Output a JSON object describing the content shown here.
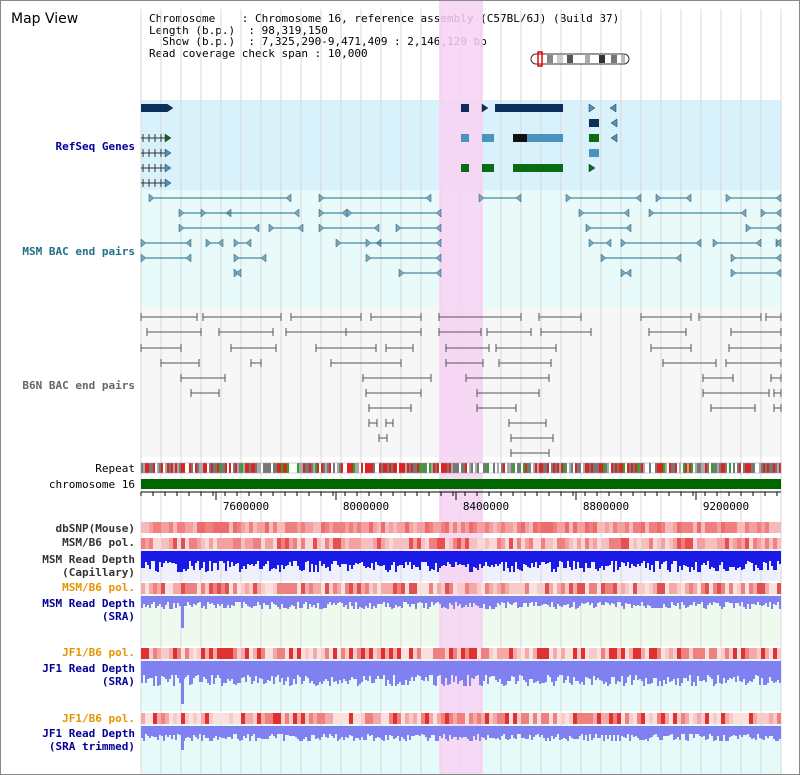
{
  "page": {
    "title": "Map View"
  },
  "info": {
    "chromosome_label": "Chromosome",
    "chromosome_value": "Chromosome 16, reference assembly (C57BL/6J) (Build 37)",
    "length_label": "Length (b.p.)",
    "length_value": "98,319,150",
    "show_label": "Show (b.p.)",
    "show_value": "7,325,290-9,471,409 : 2,146,120 bp",
    "span_label": "Read coverage check span",
    "span_value": "10,000"
  },
  "tracks": {
    "refseq": "RefSeq Genes",
    "msm_bac": "MSM BAC end pairs",
    "b6n_bac": "B6N BAC end pairs",
    "repeat": "Repeat",
    "chromosome": "chromosome 16",
    "dbsnp": "dbSNP(Mouse)",
    "msm_b6_pol_1": "MSM/B6 pol.",
    "msm_depth_cap_1": "MSM Read Depth",
    "msm_depth_cap_2": "(Capillary)",
    "msm_b6_pol_2": "MSM/B6 pol.",
    "msm_depth_sra_1": "MSM Read Depth",
    "msm_depth_sra_2": "(SRA)",
    "jf1_b6_pol_1": "JF1/B6 pol.",
    "jf1_depth_sra_1": "JF1 Read Depth",
    "jf1_depth_sra_2": "(SRA)",
    "jf1_b6_pol_2": "JF1/B6 pol.",
    "jf1_depth_trim_1": "JF1 Read Depth",
    "jf1_depth_trim_2": "(SRA trimmed)"
  },
  "axis": {
    "ticks": [
      "7600000",
      "8000000",
      "8400000",
      "8800000",
      "9200000"
    ]
  },
  "colors": {
    "refseq_bg": "#d9f1fa",
    "bac_bg": "#e8fafa",
    "highlight": "#f7d2f3",
    "refseq_dark": "#0b2e5c",
    "refseq_mid": "#4a93bd",
    "refseq_green": "#0a6b12",
    "msm_line": "#1f6f8b",
    "chromosome": "#006600",
    "depth_cap": "#1a1ae6",
    "depth_sra": "#8080f0",
    "label_blue": "#000099",
    "label_orange": "#e69500"
  }
}
